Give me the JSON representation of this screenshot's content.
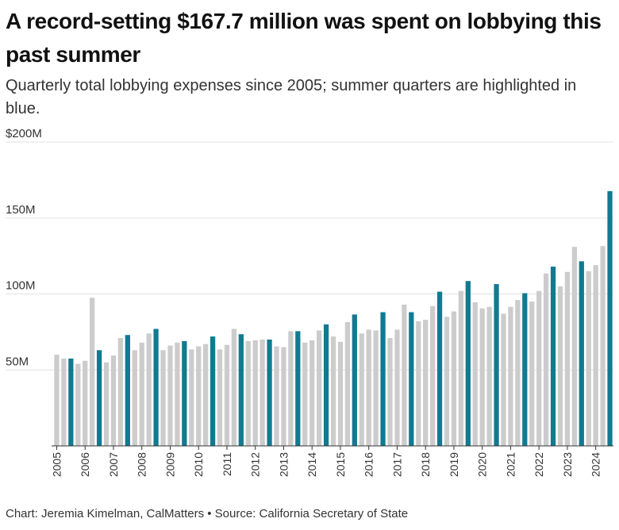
{
  "header": {
    "title": "A record-setting $167.7 million was spent on lobbying this past summer",
    "subtitle": "Quarterly total lobbying expenses since 2005; summer quarters are highlighted in blue."
  },
  "footer": {
    "credit": "Chart: Jeremia Kimelman, CalMatters",
    "separator": " • ",
    "source": "Source: California Secretary of State"
  },
  "colors": {
    "summer": "#117a91",
    "other": "#cccccc",
    "grid": "#e2e2e2",
    "axis": "#333333"
  },
  "chart_data": {
    "type": "bar",
    "title": "A record-setting $167.7 million was spent on lobbying this past summer",
    "subtitle": "Quarterly total lobbying expenses since 2005; summer quarters are highlighted in blue.",
    "units": "USD millions",
    "ylim": [
      0,
      200
    ],
    "y_ticks": [
      50,
      100,
      150,
      200
    ],
    "y_tick_labels": [
      "50M",
      "100M",
      "150M",
      "$200M"
    ],
    "grid": true,
    "x_tick_labels": [
      "2005",
      "2006",
      "2007",
      "2008",
      "2009",
      "2010",
      "2011",
      "2012",
      "2013",
      "2014",
      "2015",
      "2016",
      "2017",
      "2018",
      "2019",
      "2020",
      "2021",
      "2022",
      "2023",
      "2024"
    ],
    "highlight": "Summer quarters (Q3) in blue",
    "series": [
      {
        "values": [
          60,
          57.5,
          57.5,
          54,
          56,
          97.5,
          63,
          55,
          59.5,
          71,
          73,
          63,
          68,
          74,
          77,
          63,
          66,
          68,
          69,
          63.5,
          65.5,
          67,
          72,
          63.5,
          66.5,
          77,
          73.5,
          69,
          69.5,
          70,
          70,
          65.5,
          65,
          75.5,
          75.5,
          68,
          69.5,
          76,
          80,
          72,
          68.5,
          81.5,
          86.5,
          74,
          76.5,
          76,
          88,
          71,
          76.5,
          93,
          88,
          82,
          83,
          92,
          101.5,
          85,
          88.5,
          102,
          108.5,
          94.5,
          90.5,
          91.5,
          106.5,
          87,
          91.5,
          96,
          100.5,
          95,
          102,
          113.5,
          118,
          105,
          114.5,
          131,
          121.5,
          115,
          119,
          131.5,
          167.7
        ]
      }
    ]
  }
}
